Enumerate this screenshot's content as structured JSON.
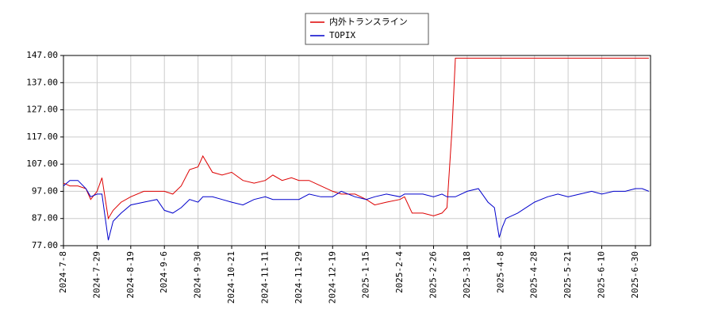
{
  "chart_data": {
    "type": "line",
    "x": [
      "2024-7-8",
      "2024-7-12",
      "2024-7-17",
      "2024-7-22",
      "2024-7-25",
      "2024-7-29",
      "2024-8-1",
      "2024-8-5",
      "2024-8-8",
      "2024-8-13",
      "2024-8-19",
      "2024-8-26",
      "2024-9-2",
      "2024-9-6",
      "2024-9-12",
      "2024-9-18",
      "2024-9-24",
      "2024-9-30",
      "2024-10-3",
      "2024-10-9",
      "2024-10-15",
      "2024-10-21",
      "2024-10-28",
      "2024-11-4",
      "2024-11-11",
      "2024-11-15",
      "2024-11-20",
      "2024-11-25",
      "2024-11-29",
      "2024-12-5",
      "2024-12-12",
      "2024-12-19",
      "2024-12-26",
      "2025-1-6",
      "2025-1-15",
      "2025-1-20",
      "2025-1-27",
      "2025-2-4",
      "2025-2-7",
      "2025-2-12",
      "2025-2-19",
      "2025-2-26",
      "2025-3-3",
      "2025-3-6",
      "2025-3-9",
      "2025-3-11",
      "2025-3-18",
      "2025-3-25",
      "2025-3-31",
      "2025-4-4",
      "2025-4-7",
      "2025-4-9",
      "2025-4-11",
      "2025-4-18",
      "2025-4-28",
      "2025-5-7",
      "2025-5-14",
      "2025-5-21",
      "2025-5-28",
      "2025-6-4",
      "2025-6-10",
      "2025-6-17",
      "2025-6-24",
      "2025-6-30",
      "2025-7-4",
      "2025-7-8"
    ],
    "series": [
      {
        "name": "内外トランスライン",
        "color": "#dd0000",
        "values": [
          100,
          99,
          99,
          98,
          94,
          97,
          102,
          87,
          90,
          93,
          95,
          97,
          97,
          97,
          96,
          99,
          105,
          106,
          110,
          104,
          103,
          104,
          101,
          100,
          101,
          103,
          101,
          102,
          101,
          101,
          99,
          97,
          96,
          96,
          94,
          92,
          93,
          94,
          95,
          89,
          89,
          88,
          89,
          91,
          120,
          146,
          146,
          146,
          146,
          146,
          146,
          146,
          146,
          146,
          146,
          146,
          146,
          146,
          146,
          146,
          146,
          146,
          146,
          146,
          146,
          146
        ]
      },
      {
        "name": "TOPIX",
        "color": "#0000cc",
        "values": [
          99,
          101,
          101,
          98,
          95,
          96,
          96,
          79,
          86,
          89,
          92,
          93,
          94,
          90,
          89,
          91,
          94,
          93,
          95,
          95,
          94,
          93,
          92,
          94,
          95,
          94,
          94,
          94,
          94,
          96,
          95,
          95,
          97,
          95,
          94,
          95,
          96,
          95,
          96,
          96,
          96,
          95,
          96,
          95,
          95,
          95,
          97,
          98,
          93,
          91,
          80,
          84,
          87,
          89,
          93,
          95,
          96,
          95,
          96,
          97,
          96,
          97,
          97,
          98,
          98,
          97
        ]
      }
    ],
    "xlim": [
      "2024-7-8",
      "2025-7-9"
    ],
    "xticks": [
      "2024-7-8",
      "2024-7-29",
      "2024-8-19",
      "2024-9-6",
      "2024-9-30",
      "2024-10-21",
      "2024-11-11",
      "2024-11-29",
      "2024-12-19",
      "2025-1-15",
      "2025-2-4",
      "2025-2-26",
      "2025-3-18",
      "2025-4-8",
      "2025-4-28",
      "2025-5-21",
      "2025-6-10",
      "2025-6-30"
    ],
    "ylim": [
      77,
      147
    ],
    "yticks": [
      {
        "value": 77,
        "label": "77.00"
      },
      {
        "value": 87,
        "label": "87.00"
      },
      {
        "value": 97,
        "label": "97.00"
      },
      {
        "value": 107,
        "label": "107.00"
      },
      {
        "value": 117,
        "label": "117.00"
      },
      {
        "value": 127,
        "label": "127.00"
      },
      {
        "value": 137,
        "label": "137.00"
      },
      {
        "value": 147,
        "label": "147.00"
      }
    ],
    "grid": true,
    "legend": "top"
  }
}
